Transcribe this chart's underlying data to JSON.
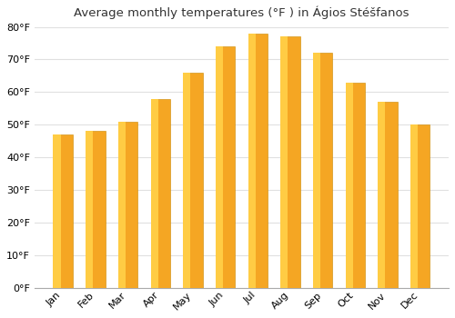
{
  "title": "Average monthly temperatures (°F ) in Ágios Stéšfanos",
  "months": [
    "Jan",
    "Feb",
    "Mar",
    "Apr",
    "May",
    "Jun",
    "Jul",
    "Aug",
    "Sep",
    "Oct",
    "Nov",
    "Dec"
  ],
  "values": [
    47,
    48,
    51,
    58,
    66,
    74,
    78,
    77,
    72,
    63,
    57,
    50
  ],
  "bar_color_main": "#F5A623",
  "bar_color_left": "#FFCC44",
  "bar_color_edge": "#CC8800",
  "ylim": [
    0,
    80
  ],
  "yticks": [
    0,
    10,
    20,
    30,
    40,
    50,
    60,
    70,
    80
  ],
  "background_color": "#ffffff",
  "plot_bg_color": "#ffffff",
  "grid_color": "#e0e0e0",
  "title_fontsize": 9.5,
  "tick_fontsize": 8
}
